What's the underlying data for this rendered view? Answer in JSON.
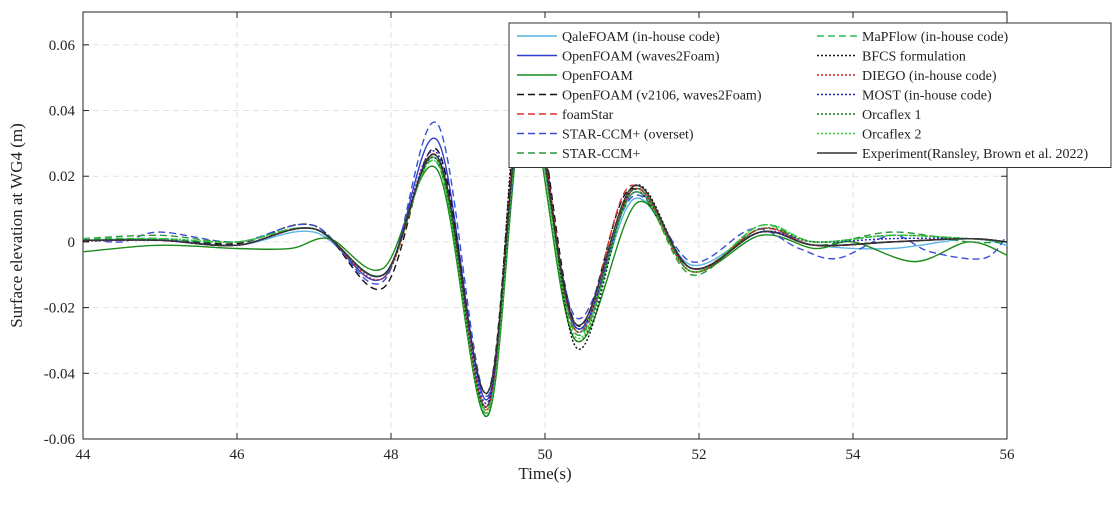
{
  "chart_data": {
    "type": "line",
    "xlabel": "Time(s)",
    "ylabel": "Surface elevation at WG4 (m)",
    "xlim": [
      44,
      56
    ],
    "ylim": [
      -0.06,
      0.07
    ],
    "xticks": [
      44,
      46,
      48,
      50,
      52,
      54,
      56
    ],
    "yticks": [
      -0.06,
      -0.04,
      -0.02,
      0,
      0.02,
      0.04,
      0.06
    ],
    "xtick_labels": [
      "44",
      "46",
      "48",
      "50",
      "52",
      "54",
      "56"
    ],
    "ytick_labels": [
      "-0.06",
      "-0.04",
      "-0.02",
      "0",
      "0.02",
      "0.04",
      "0.06"
    ],
    "grid": true,
    "legend_position": "top-right",
    "legend_columns": 2,
    "series": [
      {
        "name": "QaleFOAM (in-house code)",
        "color": "#5ab4e5",
        "dash": "solid",
        "points": [
          [
            44,
            0.0005
          ],
          [
            45,
            0.0008
          ],
          [
            46,
            -0.001
          ],
          [
            47,
            0.003
          ],
          [
            47.9,
            -0.01
          ],
          [
            48.6,
            0.025
          ],
          [
            49.25,
            -0.05
          ],
          [
            49.75,
            0.047
          ],
          [
            50.4,
            -0.027
          ],
          [
            51.15,
            0.013
          ],
          [
            51.9,
            -0.007
          ],
          [
            52.8,
            0.003
          ],
          [
            53.5,
            -0.001
          ],
          [
            54.5,
            -0.002
          ],
          [
            55.5,
            0.001
          ],
          [
            56,
            -0.001
          ]
        ]
      },
      {
        "name": "OpenFOAM (waves2Foam)",
        "color": "#2b3fcc",
        "dash": "solid",
        "points": [
          [
            44,
            0.0005
          ],
          [
            45,
            0.0005
          ],
          [
            46,
            -0.001
          ],
          [
            47,
            0.004
          ],
          [
            47.9,
            -0.011
          ],
          [
            48.6,
            0.031
          ],
          [
            49.25,
            -0.048
          ],
          [
            49.75,
            0.05
          ],
          [
            50.4,
            -0.026
          ],
          [
            51.15,
            0.015
          ],
          [
            51.9,
            -0.008
          ],
          [
            52.8,
            0.003
          ],
          [
            53.5,
            -0.001
          ],
          [
            54.5,
            0
          ],
          [
            55.5,
            0.001
          ],
          [
            56,
            0
          ]
        ]
      },
      {
        "name": "OpenFOAM",
        "color": "#1a8c1a",
        "dash": "solid",
        "points": [
          [
            44,
            -0.003
          ],
          [
            45,
            -0.001
          ],
          [
            46,
            -0.002
          ],
          [
            46.7,
            -0.002
          ],
          [
            47.2,
            0.001
          ],
          [
            47.9,
            -0.008
          ],
          [
            48.6,
            0.022
          ],
          [
            49.25,
            -0.053
          ],
          [
            49.75,
            0.042
          ],
          [
            50.4,
            -0.03
          ],
          [
            51.2,
            0.012
          ],
          [
            51.9,
            -0.009
          ],
          [
            52.8,
            0.002
          ],
          [
            53.5,
            -0.002
          ],
          [
            54,
            0
          ],
          [
            54.8,
            -0.006
          ],
          [
            55.5,
            0
          ],
          [
            56,
            -0.004
          ]
        ]
      },
      {
        "name": "OpenFOAM (v2106, waves2Foam)",
        "color": "#111111",
        "dash": "7,4",
        "points": [
          [
            44,
            0.0005
          ],
          [
            45,
            0.001
          ],
          [
            46,
            -0.0005
          ],
          [
            47,
            0.005
          ],
          [
            47.9,
            -0.014
          ],
          [
            48.6,
            0.028
          ],
          [
            49.25,
            -0.046
          ],
          [
            49.75,
            0.055
          ],
          [
            50.4,
            -0.025
          ],
          [
            51.1,
            0.016
          ],
          [
            51.9,
            -0.008
          ],
          [
            52.8,
            0.003
          ],
          [
            53.5,
            -0.001
          ],
          [
            54.5,
            0
          ],
          [
            55.5,
            0.001
          ],
          [
            56,
            0
          ]
        ]
      },
      {
        "name": "foamStar",
        "color": "#e0302a",
        "dash": "7,4",
        "points": [
          [
            44,
            0.0003
          ],
          [
            45,
            0.0005
          ],
          [
            46,
            -0.001
          ],
          [
            47,
            0.004
          ],
          [
            47.9,
            -0.01
          ],
          [
            48.6,
            0.026
          ],
          [
            49.25,
            -0.051
          ],
          [
            49.75,
            0.053
          ],
          [
            50.4,
            -0.027
          ],
          [
            51.1,
            0.017
          ],
          [
            51.9,
            -0.008
          ],
          [
            52.8,
            0.004
          ],
          [
            53.5,
            -0.001
          ],
          [
            54.5,
            0
          ],
          [
            55.5,
            0.001
          ],
          [
            56,
            0
          ]
        ]
      },
      {
        "name": "STAR-CCM+ (overset)",
        "color": "#3a4fd6",
        "dash": "7,4",
        "points": [
          [
            44,
            0.001
          ],
          [
            44.5,
            0
          ],
          [
            45,
            0.003
          ],
          [
            46,
            0
          ],
          [
            47,
            0.005
          ],
          [
            47.9,
            -0.012
          ],
          [
            48.6,
            0.036
          ],
          [
            49.25,
            -0.047
          ],
          [
            49.75,
            0.043
          ],
          [
            50.4,
            -0.023
          ],
          [
            51.15,
            0.014
          ],
          [
            51.9,
            -0.006
          ],
          [
            52.7,
            0.004
          ],
          [
            53.3,
            -0.002
          ],
          [
            53.8,
            -0.005
          ],
          [
            54.5,
            0.002
          ],
          [
            55,
            -0.003
          ],
          [
            55.7,
            -0.005
          ],
          [
            56,
            0.002
          ]
        ]
      },
      {
        "name": "STAR-CCM+",
        "color": "#2a9a3a",
        "dash": "7,4",
        "points": [
          [
            44,
            0.001
          ],
          [
            45,
            0.002
          ],
          [
            46,
            0
          ],
          [
            47,
            0.004
          ],
          [
            47.9,
            -0.01
          ],
          [
            48.6,
            0.024
          ],
          [
            49.25,
            -0.052
          ],
          [
            49.75,
            0.048
          ],
          [
            50.4,
            -0.028
          ],
          [
            51.15,
            0.015
          ],
          [
            51.9,
            -0.01
          ],
          [
            52.8,
            0.005
          ],
          [
            53.5,
            -0.001
          ],
          [
            54.5,
            0.003
          ],
          [
            55.5,
            0
          ],
          [
            56,
            0
          ]
        ]
      },
      {
        "name": "MaPFlow (in-house code)",
        "color": "#33bb55",
        "dash": "7,4",
        "points": [
          [
            44,
            0.001
          ],
          [
            45,
            0.001
          ],
          [
            46,
            0
          ],
          [
            47,
            0.004
          ],
          [
            47.9,
            -0.01
          ],
          [
            48.6,
            0.025
          ],
          [
            49.25,
            -0.051
          ],
          [
            49.75,
            0.049
          ],
          [
            50.4,
            -0.027
          ],
          [
            51.15,
            0.016
          ],
          [
            51.9,
            -0.009
          ],
          [
            52.8,
            0.005
          ],
          [
            53.5,
            0
          ],
          [
            54.5,
            0.002
          ],
          [
            55.5,
            0.001
          ],
          [
            56,
            0
          ]
        ]
      },
      {
        "name": "BFCS formulation",
        "color": "#111111",
        "dash": "2,2",
        "points": [
          [
            44,
            0.0003
          ],
          [
            45,
            0.0005
          ],
          [
            46,
            -0.001
          ],
          [
            47,
            0.004
          ],
          [
            47.9,
            -0.01
          ],
          [
            48.6,
            0.025
          ],
          [
            49.25,
            -0.05
          ],
          [
            49.75,
            0.06
          ],
          [
            50.4,
            -0.032
          ],
          [
            51.15,
            0.017
          ],
          [
            51.9,
            -0.008
          ],
          [
            52.8,
            0.003
          ],
          [
            53.5,
            -0.001
          ],
          [
            54.5,
            0
          ],
          [
            55.5,
            0.001
          ],
          [
            56,
            0
          ]
        ]
      },
      {
        "name": "DIEGO (in-house code)",
        "color": "#d22020",
        "dash": "2,2",
        "points": [
          [
            44,
            0.0005
          ],
          [
            45,
            0.0005
          ],
          [
            46,
            -0.001
          ],
          [
            47,
            0.004
          ],
          [
            47.9,
            -0.011
          ],
          [
            48.6,
            0.026
          ],
          [
            49.25,
            -0.05
          ],
          [
            49.75,
            0.052
          ],
          [
            50.4,
            -0.027
          ],
          [
            51.15,
            0.016
          ],
          [
            51.9,
            -0.009
          ],
          [
            52.8,
            0.004
          ],
          [
            53.5,
            -0.001
          ],
          [
            54.5,
            0
          ],
          [
            55.5,
            0.001
          ],
          [
            56,
            0
          ]
        ]
      },
      {
        "name": "MOST (in-house code)",
        "color": "#2222cc",
        "dash": "2,2",
        "points": [
          [
            44,
            0.0005
          ],
          [
            45,
            0.0005
          ],
          [
            46,
            -0.001
          ],
          [
            47,
            0.004
          ],
          [
            47.9,
            -0.01
          ],
          [
            48.6,
            0.027
          ],
          [
            49.25,
            -0.049
          ],
          [
            49.75,
            0.05
          ],
          [
            50.4,
            -0.026
          ],
          [
            51.15,
            0.015
          ],
          [
            51.9,
            -0.008
          ],
          [
            52.8,
            0.003
          ],
          [
            53.5,
            0
          ],
          [
            54.5,
            0.001
          ],
          [
            55.5,
            0.001
          ],
          [
            56,
            0
          ]
        ]
      },
      {
        "name": "Orcaflex 1",
        "color": "#117711",
        "dash": "2,2",
        "points": [
          [
            44,
            0.0005
          ],
          [
            45,
            0.001
          ],
          [
            46,
            0
          ],
          [
            47,
            0.004
          ],
          [
            47.9,
            -0.01
          ],
          [
            48.6,
            0.025
          ],
          [
            49.25,
            -0.053
          ],
          [
            49.75,
            0.047
          ],
          [
            50.4,
            -0.03
          ],
          [
            51.15,
            0.016
          ],
          [
            51.9,
            -0.009
          ],
          [
            52.8,
            0.004
          ],
          [
            53.5,
            0
          ],
          [
            54.5,
            0.002
          ],
          [
            55.5,
            0.001
          ],
          [
            56,
            0
          ]
        ]
      },
      {
        "name": "Orcaflex 2",
        "color": "#33cc33",
        "dash": "2,2",
        "points": [
          [
            44,
            0.0005
          ],
          [
            45,
            0.001
          ],
          [
            46,
            0
          ],
          [
            47,
            0.004
          ],
          [
            47.9,
            -0.01
          ],
          [
            48.6,
            0.024
          ],
          [
            49.25,
            -0.052
          ],
          [
            49.75,
            0.046
          ],
          [
            50.4,
            -0.029
          ],
          [
            51.15,
            0.015
          ],
          [
            51.9,
            -0.009
          ],
          [
            52.8,
            0.005
          ],
          [
            53.5,
            0
          ],
          [
            54.5,
            0.002
          ],
          [
            55.5,
            0.001
          ],
          [
            56,
            0
          ]
        ]
      },
      {
        "name": "Experiment(Ransley, Brown et al. 2022)",
        "color": "#333333",
        "dash": "solid",
        "points": [
          [
            44,
            0.0005
          ],
          [
            45,
            0.0005
          ],
          [
            46,
            -0.001
          ],
          [
            47,
            0.004
          ],
          [
            47.9,
            -0.01
          ],
          [
            48.6,
            0.026
          ],
          [
            49.25,
            -0.046
          ],
          [
            49.75,
            0.048
          ],
          [
            50.4,
            -0.025
          ],
          [
            51.15,
            0.017
          ],
          [
            51.9,
            -0.008
          ],
          [
            52.8,
            0.003
          ],
          [
            53.5,
            -0.001
          ],
          [
            54.5,
            0
          ],
          [
            55.5,
            0.001
          ],
          [
            56,
            0
          ]
        ]
      }
    ]
  }
}
